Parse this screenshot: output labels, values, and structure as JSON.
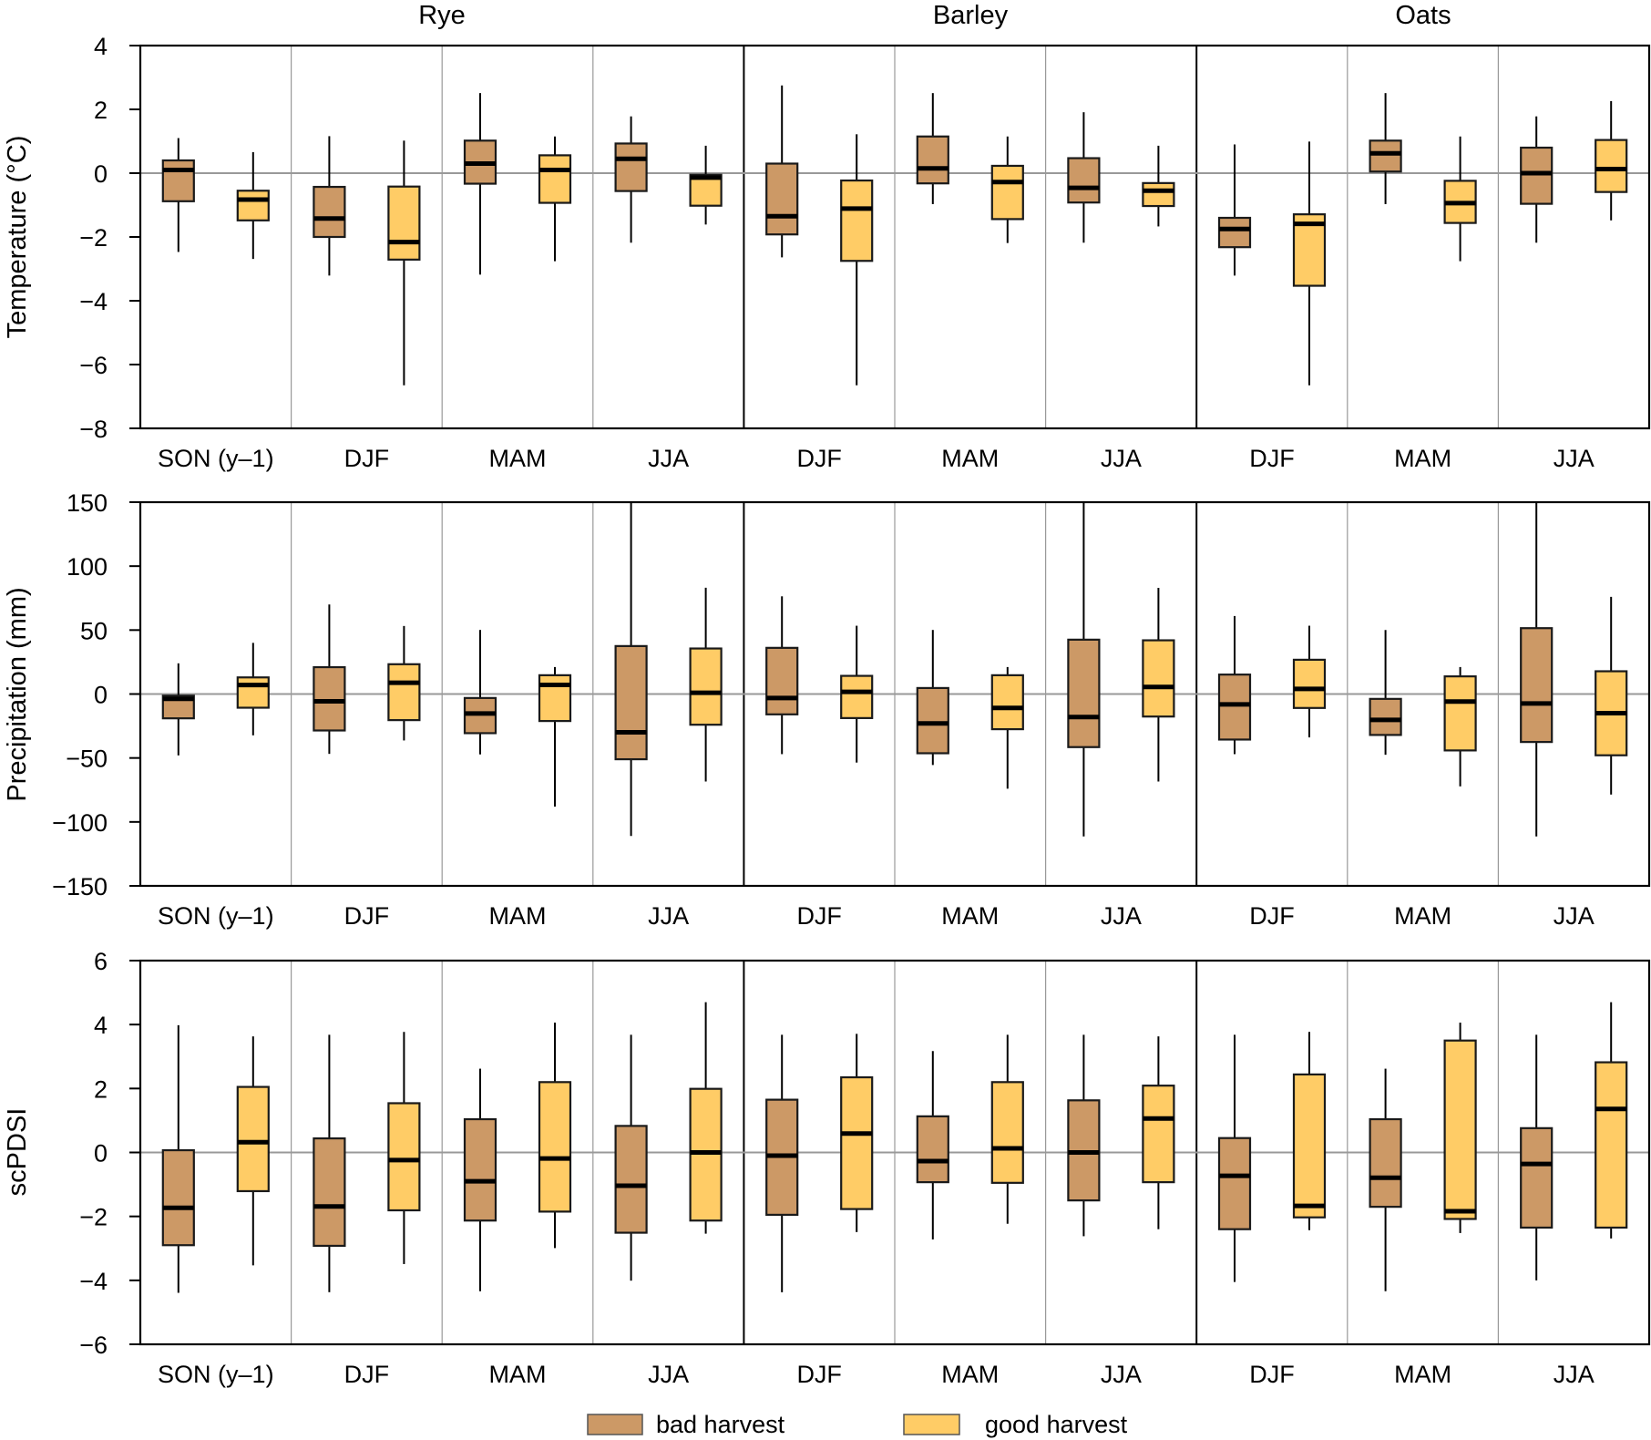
{
  "chart_data": {
    "type": "boxplot",
    "crops": [
      "Rye",
      "Barley",
      "Oats"
    ],
    "crop_seasons": {
      "Rye": [
        "SON (y–1)",
        "DJF",
        "MAM",
        "JJA"
      ],
      "Barley": [
        "DJF",
        "MAM",
        "JJA"
      ],
      "Oats": [
        "DJF",
        "MAM",
        "JJA"
      ]
    },
    "legend": {
      "position": "bottom-center",
      "entries": [
        {
          "name": "bad harvest",
          "color": "#CC9966"
        },
        {
          "name": "good harvest",
          "color": "#FFCC66"
        }
      ]
    },
    "colors": {
      "bad": "#CC9966",
      "good": "#FFCC66",
      "median": "#000000",
      "zero_line": "#999999",
      "season_divider": "#999999",
      "crop_divider": "#000000"
    },
    "box_format": "[whisker_max, q3, median, q1, whisker_min]",
    "panels": [
      {
        "id": "temperature",
        "ylabel": "Temperature (°C)",
        "ylim": [
          -8,
          4
        ],
        "yticks": [
          4,
          2,
          0,
          -2,
          -4,
          -6,
          -8
        ],
        "ytick_labels": [
          "4",
          "2",
          "0",
          "−2",
          "−4",
          "−6",
          "−8"
        ],
        "zero_line": true,
        "groups": [
          {
            "crop": "Rye",
            "season": "SON (y–1)",
            "bad": [
              1.1,
              0.4,
              0.1,
              -0.88,
              -2.47
            ],
            "good": [
              0.66,
              -0.55,
              -0.83,
              -1.48,
              -2.69
            ]
          },
          {
            "crop": "Rye",
            "season": "DJF",
            "bad": [
              1.16,
              -0.43,
              -1.42,
              -2.0,
              -3.21
            ],
            "good": [
              1.02,
              -0.42,
              -2.16,
              -2.71,
              -6.65
            ]
          },
          {
            "crop": "Rye",
            "season": "MAM",
            "bad": [
              2.51,
              1.02,
              0.3,
              -0.33,
              -3.18
            ],
            "good": [
              1.15,
              0.56,
              0.1,
              -0.93,
              -2.76
            ]
          },
          {
            "crop": "Rye",
            "season": "JJA",
            "bad": [
              1.78,
              0.93,
              0.45,
              -0.56,
              -2.18
            ],
            "good": [
              0.86,
              -0.05,
              -0.14,
              -1.02,
              -1.61
            ]
          },
          {
            "crop": "Barley",
            "season": "DJF",
            "bad": [
              2.75,
              0.3,
              -1.35,
              -1.92,
              -2.64
            ],
            "good": [
              1.22,
              -0.23,
              -1.11,
              -2.75,
              -6.65
            ]
          },
          {
            "crop": "Barley",
            "season": "MAM",
            "bad": [
              2.51,
              1.15,
              0.15,
              -0.32,
              -0.97
            ],
            "good": [
              1.15,
              0.23,
              -0.28,
              -1.44,
              -2.19
            ]
          },
          {
            "crop": "Barley",
            "season": "JJA",
            "bad": [
              1.91,
              0.47,
              -0.46,
              -0.92,
              -2.18
            ],
            "good": [
              0.86,
              -0.31,
              -0.55,
              -1.03,
              -1.67
            ]
          },
          {
            "crop": "Oats",
            "season": "DJF",
            "bad": [
              0.9,
              -1.4,
              -1.75,
              -2.32,
              -3.21
            ],
            "good": [
              0.99,
              -1.29,
              -1.59,
              -3.53,
              -6.65
            ]
          },
          {
            "crop": "Oats",
            "season": "MAM",
            "bad": [
              2.51,
              1.02,
              0.62,
              0.05,
              -0.97
            ],
            "good": [
              1.15,
              -0.24,
              -0.94,
              -1.56,
              -2.76
            ]
          },
          {
            "crop": "Oats",
            "season": "JJA",
            "bad": [
              1.78,
              0.8,
              0.0,
              -0.96,
              -2.18
            ],
            "good": [
              2.26,
              1.04,
              0.13,
              -0.59,
              -1.48
            ]
          }
        ]
      },
      {
        "id": "precipitation",
        "ylabel": "Precipitation (mm)",
        "ylim": [
          -150,
          150
        ],
        "yticks": [
          150,
          100,
          50,
          0,
          -50,
          -100,
          -150
        ],
        "ytick_labels": [
          "150",
          "100",
          "50",
          "0",
          "−50",
          "−100",
          "−150"
        ],
        "zero_line": true,
        "groups": [
          {
            "crop": "Rye",
            "season": "SON (y–1)",
            "bad": [
              24,
              -1.3,
              -3.7,
              -19,
              -48
            ],
            "good": [
              40,
              13,
              7,
              -10.7,
              -32.3
            ]
          },
          {
            "crop": "Rye",
            "season": "DJF",
            "bad": [
              70,
              21,
              -5.7,
              -28.5,
              -46.8
            ],
            "good": [
              53.2,
              23.3,
              8.8,
              -20.4,
              -36.3
            ]
          },
          {
            "crop": "Rye",
            "season": "MAM",
            "bad": [
              50.1,
              -3.1,
              -15.2,
              -30.6,
              -47.2
            ],
            "good": [
              21.1,
              14.7,
              7.1,
              -21.1,
              -88
            ]
          },
          {
            "crop": "Rye",
            "season": "JJA",
            "bad": [
              150,
              37.5,
              -29.9,
              -51,
              -111
            ],
            "good": [
              83.1,
              35.6,
              1.0,
              -24,
              -68.4
            ]
          },
          {
            "crop": "Barley",
            "season": "DJF",
            "bad": [
              76.4,
              36.1,
              -3.1,
              -15.9,
              -47
            ],
            "good": [
              53.4,
              14.2,
              1.7,
              -18.8,
              -53.6
            ]
          },
          {
            "crop": "Barley",
            "season": "MAM",
            "bad": [
              50.1,
              4.7,
              -23,
              -46.3,
              -55.5
            ],
            "good": [
              21.1,
              14.7,
              -10.9,
              -27.5,
              -74
            ]
          },
          {
            "crop": "Barley",
            "season": "JJA",
            "bad": [
              150,
              42.5,
              -18,
              -41.5,
              -111.3
            ],
            "good": [
              83,
              42,
              5.5,
              -17.6,
              -68.4
            ]
          },
          {
            "crop": "Oats",
            "season": "DJF",
            "bad": [
              61,
              15.2,
              -8.1,
              -35.6,
              -47
            ],
            "good": [
              53.4,
              26.8,
              4,
              -10.9,
              -33.9
            ]
          },
          {
            "crop": "Oats",
            "season": "MAM",
            "bad": [
              50.1,
              -3.8,
              -20.2,
              -32,
              -47.5
            ],
            "good": [
              21.1,
              13.8,
              -5.9,
              -44.1,
              -72.2
            ]
          },
          {
            "crop": "Oats",
            "season": "JJA",
            "bad": [
              150,
              51.5,
              -7.4,
              -37.5,
              -111.3
            ],
            "good": [
              76,
              17.8,
              -15,
              -47.9,
              -78.6
            ]
          }
        ]
      },
      {
        "id": "scpdsi",
        "ylabel": "scPDSI",
        "ylim": [
          -6,
          6
        ],
        "yticks": [
          6,
          4,
          2,
          0,
          -2,
          -4,
          -6
        ],
        "ytick_labels": [
          "6",
          "4",
          "2",
          "0",
          "−2",
          "−4",
          "−6"
        ],
        "zero_line": true,
        "groups": [
          {
            "crop": "Rye",
            "season": "SON (y–1)",
            "bad": [
              3.98,
              0.07,
              -1.73,
              -2.9,
              -4.39
            ],
            "good": [
              3.63,
              2.05,
              0.32,
              -1.21,
              -3.53
            ]
          },
          {
            "crop": "Rye",
            "season": "DJF",
            "bad": [
              3.68,
              0.44,
              -1.69,
              -2.92,
              -4.37
            ],
            "good": [
              3.77,
              1.54,
              -0.24,
              -1.81,
              -3.49
            ]
          },
          {
            "crop": "Rye",
            "season": "MAM",
            "bad": [
              2.62,
              1.04,
              -0.9,
              -2.13,
              -4.34
            ],
            "good": [
              4.06,
              2.2,
              -0.19,
              -1.85,
              -2.99
            ]
          },
          {
            "crop": "Rye",
            "season": "JJA",
            "bad": [
              3.68,
              0.83,
              -1.04,
              -2.51,
              -4.01
            ],
            "good": [
              4.7,
              1.99,
              0.0,
              -2.13,
              -2.54
            ]
          },
          {
            "crop": "Barley",
            "season": "DJF",
            "bad": [
              3.68,
              1.65,
              -0.1,
              -1.95,
              -4.37
            ],
            "good": [
              3.71,
              2.35,
              0.59,
              -1.77,
              -2.49
            ]
          },
          {
            "crop": "Barley",
            "season": "MAM",
            "bad": [
              3.17,
              1.13,
              -0.27,
              -0.93,
              -2.72
            ],
            "good": [
              3.68,
              2.2,
              0.13,
              -0.95,
              -2.23
            ]
          },
          {
            "crop": "Barley",
            "season": "JJA",
            "bad": [
              3.68,
              1.63,
              0.0,
              -1.5,
              -2.62
            ],
            "good": [
              3.63,
              2.09,
              1.06,
              -0.93,
              -2.4
            ]
          },
          {
            "crop": "Oats",
            "season": "DJF",
            "bad": [
              3.68,
              0.45,
              -0.73,
              -2.4,
              -4.05
            ],
            "good": [
              3.77,
              2.44,
              -1.67,
              -2.03,
              -2.43
            ]
          },
          {
            "crop": "Oats",
            "season": "MAM",
            "bad": [
              2.62,
              1.04,
              -0.79,
              -1.7,
              -4.34
            ],
            "good": [
              4.06,
              3.5,
              -1.84,
              -2.08,
              -2.52
            ]
          },
          {
            "crop": "Oats",
            "season": "JJA",
            "bad": [
              3.68,
              0.76,
              -0.36,
              -2.35,
              -4.0
            ],
            "good": [
              4.7,
              2.82,
              1.36,
              -2.35,
              -2.69
            ]
          }
        ]
      }
    ]
  }
}
